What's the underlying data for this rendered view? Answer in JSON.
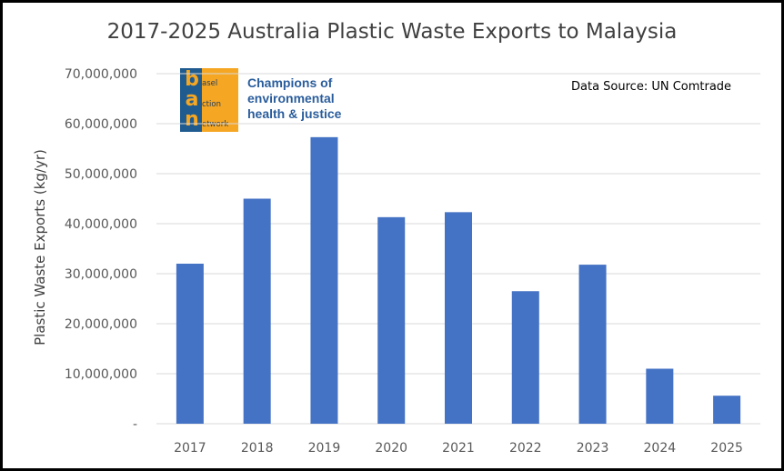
{
  "chart_data": {
    "type": "bar",
    "title": "2017-2025 Australia Plastic Waste Exports to Malaysia",
    "ylabel": "Plastic Waste Exports (kg/yr)",
    "xlabel": "",
    "categories": [
      "2017",
      "2018",
      "2019",
      "2020",
      "2021",
      "2022",
      "2023",
      "2024",
      "2025"
    ],
    "values": [
      32000000,
      45000000,
      57300000,
      41300000,
      42300000,
      26500000,
      31800000,
      11000000,
      5600000
    ],
    "ylim": [
      0,
      70000000
    ],
    "y_ticks": [
      "-",
      "10,000,000",
      "20,000,000",
      "30,000,000",
      "40,000,000",
      "50,000,000",
      "60,000,000",
      "70,000,000"
    ],
    "y_tick_values": [
      0,
      10000000,
      20000000,
      30000000,
      40000000,
      50000000,
      60000000,
      70000000
    ],
    "grid": true,
    "legend": "none",
    "bar_color": "#4472c4",
    "grid_color": "#d9d9d9",
    "annotation": "Data Source: UN Comtrade"
  },
  "logo": {
    "letters": [
      "b",
      "a",
      "n"
    ],
    "words": [
      "asel",
      "ction",
      "etwork"
    ],
    "tagline": [
      "Champions of",
      "environmental",
      "health & justice"
    ]
  }
}
